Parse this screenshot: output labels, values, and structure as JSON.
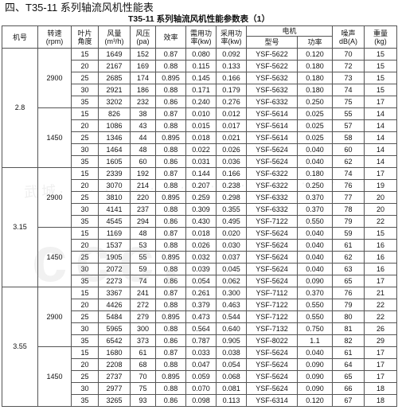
{
  "section_title": "四、T35-11 系列轴流风机性能表",
  "caption": "T35-11 系列轴流风机性能参数表（1）",
  "headers": {
    "model_no": "机号",
    "speed": "转速",
    "speed_unit": "(rpm)",
    "blade": "叶片",
    "blade2": "角度",
    "airflow": "风量",
    "airflow_unit": "(m³/h)",
    "pressure": "风压",
    "pressure_unit": "(pa)",
    "efficiency": "效率",
    "req_power": "需用功",
    "req_power2": "率(kw)",
    "used_power": "采用功",
    "used_power2": "率(kw)",
    "motor": "电机",
    "motor_model": "型号",
    "motor_power": "功率",
    "noise": "噪声",
    "noise_unit": "dB(A)",
    "weight": "重量",
    "weight_unit": "(kg)"
  },
  "groups": [
    {
      "model": "2.8",
      "speeds": [
        {
          "rpm": "2900",
          "rows": [
            [
              "15",
              "1649",
              "152",
              "0.87",
              "0.080",
              "0.092",
              "YSF-5622",
              "0.120",
              "70",
              "15"
            ],
            [
              "20",
              "2167",
              "169",
              "0.88",
              "0.115",
              "0.133",
              "YSF-5622",
              "0.180",
              "72",
              "15"
            ],
            [
              "25",
              "2685",
              "174",
              "0.895",
              "0.145",
              "0.166",
              "YSF-5632",
              "0.180",
              "73",
              "15"
            ],
            [
              "30",
              "2921",
              "186",
              "0.88",
              "0.171",
              "0.179",
              "YSF-5632",
              "0.180",
              "74",
              "15"
            ],
            [
              "35",
              "3202",
              "232",
              "0.86",
              "0.240",
              "0.276",
              "YSF-6332",
              "0.250",
              "75",
              "17"
            ]
          ]
        },
        {
          "rpm": "1450",
          "rows": [
            [
              "15",
              "826",
              "38",
              "0.87",
              "0.010",
              "0.012",
              "YSF-5614",
              "0.025",
              "55",
              "14"
            ],
            [
              "20",
              "1086",
              "43",
              "0.88",
              "0.015",
              "0.017",
              "YSF-5614",
              "0.025",
              "57",
              "14"
            ],
            [
              "25",
              "1346",
              "44",
              "0.895",
              "0.018",
              "0.021",
              "YSF-5614",
              "0.025",
              "58",
              "14"
            ],
            [
              "30",
              "1464",
              "48",
              "0.88",
              "0.022",
              "0.026",
              "YSF-5624",
              "0.040",
              "60",
              "14"
            ],
            [
              "35",
              "1605",
              "60",
              "0.86",
              "0.031",
              "0.036",
              "YSF-5624",
              "0.040",
              "62",
              "14"
            ]
          ]
        }
      ]
    },
    {
      "model": "3.15",
      "speeds": [
        {
          "rpm": "2900",
          "rows": [
            [
              "15",
              "2339",
              "192",
              "0.87",
              "0.144",
              "0.166",
              "YSF-6322",
              "0.180",
              "74",
              "17"
            ],
            [
              "20",
              "3070",
              "214",
              "0.88",
              "0.207",
              "0.238",
              "YSF-6322",
              "0.250",
              "76",
              "19"
            ],
            [
              "25",
              "3810",
              "220",
              "0.895",
              "0.259",
              "0.298",
              "YSF-6332",
              "0.370",
              "77",
              "20"
            ],
            [
              "30",
              "4141",
              "237",
              "0.88",
              "0.309",
              "0.355",
              "YSF-6332",
              "0.370",
              "78",
              "20"
            ],
            [
              "35",
              "4545",
              "294",
              "0.86",
              "0.430",
              "0.495",
              "YSF-7122",
              "0.550",
              "79",
              "22"
            ]
          ]
        },
        {
          "rpm": "1450",
          "rows": [
            [
              "15",
              "1169",
              "48",
              "0.87",
              "0.018",
              "0.020",
              "YSF-5624",
              "0.040",
              "59",
              "15"
            ],
            [
              "20",
              "1537",
              "53",
              "0.88",
              "0.026",
              "0.030",
              "YSF-5624",
              "0.040",
              "61",
              "16"
            ],
            [
              "25",
              "1905",
              "55",
              "0.895",
              "0.032",
              "0.037",
              "YSF-5624",
              "0.040",
              "62",
              "16"
            ],
            [
              "30",
              "2072",
              "59",
              "0.88",
              "0.039",
              "0.045",
              "YSF-5624",
              "0.040",
              "63",
              "16"
            ],
            [
              "35",
              "2273",
              "74",
              "0.86",
              "0.054",
              "0.062",
              "YSF-5624",
              "0.090",
              "65",
              "17"
            ]
          ]
        }
      ]
    },
    {
      "model": "3.55",
      "speeds": [
        {
          "rpm": "2900",
          "rows": [
            [
              "15",
              "3367",
              "241",
              "0.87",
              "0.261",
              "0.300",
              "YSF-7112",
              "0.370",
              "76",
              "21"
            ],
            [
              "20",
              "4426",
              "272",
              "0.88",
              "0.379",
              "0.463",
              "YSF-7122",
              "0.550",
              "79",
              "22"
            ],
            [
              "25",
              "5484",
              "279",
              "0.895",
              "0.473",
              "0.544",
              "YSF-7122",
              "0.550",
              "80",
              "22"
            ],
            [
              "30",
              "5965",
              "300",
              "0.88",
              "0.564",
              "0.640",
              "YSF-7132",
              "0.750",
              "81",
              "26"
            ],
            [
              "35",
              "6542",
              "373",
              "0.86",
              "0.787",
              "0.905",
              "YSF-8022",
              "1.1",
              "82",
              "29"
            ]
          ]
        },
        {
          "rpm": "1450",
          "rows": [
            [
              "15",
              "1680",
              "61",
              "0.87",
              "0.033",
              "0.038",
              "YSF-5624",
              "0.040",
              "61",
              "17"
            ],
            [
              "20",
              "2208",
              "68",
              "0.88",
              "0.047",
              "0.054",
              "YSF-5624",
              "0.090",
              "64",
              "17"
            ],
            [
              "25",
              "2737",
              "70",
              "0.895",
              "0.059",
              "0.068",
              "YSF-5624",
              "0.090",
              "65",
              "17"
            ],
            [
              "30",
              "2977",
              "75",
              "0.88",
              "0.070",
              "0.081",
              "YSF-5624",
              "0.090",
              "66",
              "18"
            ],
            [
              "35",
              "3265",
              "93",
              "0.86",
              "0.098",
              "0.113",
              "YSF-6314",
              "0.120",
              "67",
              "18"
            ]
          ]
        }
      ]
    }
  ]
}
